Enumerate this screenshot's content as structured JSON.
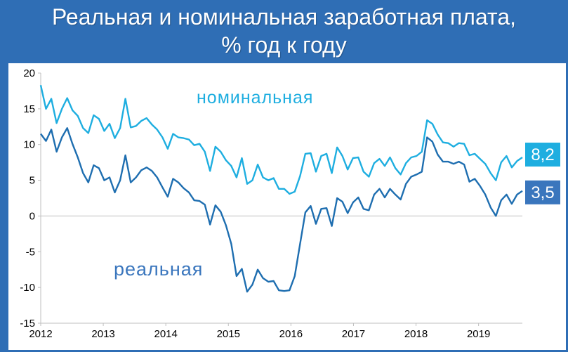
{
  "header": {
    "title_line1": "Реальная и номинальная заработная плата,",
    "title_line2": "% год к году"
  },
  "colors": {
    "background": "#2f6eb5",
    "nominal": "#1eaee0",
    "real": "#1e6eb0",
    "nominal_label_bg": "#1eaee0",
    "real_label_bg": "#3a76bd",
    "axis": "#bfbfbf",
    "text": "#000000"
  },
  "chart_data": {
    "type": "line",
    "x_start": 2012,
    "x_end": 2019.7,
    "ylim": [
      -15,
      20
    ],
    "yticks": [
      "20",
      "15",
      "10",
      "5",
      "0",
      "-5",
      "-10",
      "-15"
    ],
    "ytick_values": [
      20,
      15,
      10,
      5,
      0,
      -5,
      -10,
      -15
    ],
    "xticks": [
      "2012",
      "2013",
      "2014",
      "2015",
      "2016",
      "2017",
      "2018",
      "2019"
    ],
    "xtick_values": [
      2012,
      2013,
      2014,
      2015,
      2016,
      2017,
      2018,
      2019
    ],
    "grid": false,
    "series": [
      {
        "name": "номинальная",
        "values": [
          18.3,
          15.0,
          16.4,
          13.0,
          15.0,
          16.5,
          14.8,
          14.0,
          12.3,
          11.6,
          14.1,
          13.6,
          11.9,
          12.9,
          10.9,
          12.3,
          16.4,
          12.4,
          12.6,
          13.3,
          13.7,
          12.8,
          12.1,
          11.0,
          9.4,
          11.5,
          11.0,
          10.9,
          10.7,
          9.9,
          10.1,
          9.0,
          6.3,
          9.7,
          9.0,
          7.8,
          7.0,
          5.4,
          8.1,
          4.5,
          5.0,
          7.2,
          5.4,
          5.0,
          5.3,
          3.8,
          3.8,
          3.1,
          3.4,
          5.6,
          8.7,
          8.8,
          6.2,
          8.4,
          8.7,
          6.0,
          9.6,
          8.4,
          6.5,
          8.1,
          8.2,
          6.2,
          5.5,
          7.4,
          8.0,
          7.0,
          8.2,
          6.7,
          5.8,
          7.4,
          8.2,
          8.4,
          9.0,
          13.4,
          12.9,
          11.4,
          10.3,
          10.2,
          9.7,
          10.2,
          10.1,
          8.5,
          8.7,
          8.0,
          7.3,
          6.0,
          5.0,
          7.5,
          8.4,
          6.8,
          7.7,
          8.2
        ],
        "color": "#1eaee0",
        "end_value_label": "8,2"
      },
      {
        "name": "реальная",
        "values": [
          11.5,
          10.5,
          12.1,
          9.0,
          11.0,
          12.3,
          10.1,
          8.2,
          6.0,
          4.7,
          7.1,
          6.7,
          5.0,
          5.4,
          3.3,
          5.0,
          8.5,
          4.7,
          5.4,
          6.4,
          6.8,
          6.3,
          5.4,
          4.0,
          2.7,
          5.2,
          4.7,
          3.9,
          3.3,
          2.2,
          2.1,
          1.6,
          -1.2,
          1.5,
          0.6,
          -1.3,
          -3.9,
          -8.4,
          -7.4,
          -10.6,
          -9.6,
          -7.5,
          -8.7,
          -9.2,
          -9.1,
          -10.4,
          -10.5,
          -10.4,
          -8.4,
          -3.9,
          0.5,
          1.4,
          -1.1,
          1.0,
          1.1,
          -1.4,
          2.5,
          2.0,
          0.4,
          1.9,
          2.6,
          1.0,
          0.8,
          3.0,
          3.8,
          2.6,
          3.8,
          3.0,
          2.3,
          4.5,
          5.5,
          5.8,
          6.2,
          11.0,
          10.4,
          8.6,
          7.6,
          7.6,
          7.3,
          7.6,
          7.2,
          4.8,
          5.2,
          4.2,
          3.0,
          1.2,
          0.0,
          2.2,
          3.0,
          1.7,
          3.0,
          3.5
        ],
        "color": "#1e6eb0",
        "end_value_label": "3,5"
      }
    ],
    "annotations": {
      "nominal_label": "номинальная",
      "real_label": "реальная"
    }
  }
}
